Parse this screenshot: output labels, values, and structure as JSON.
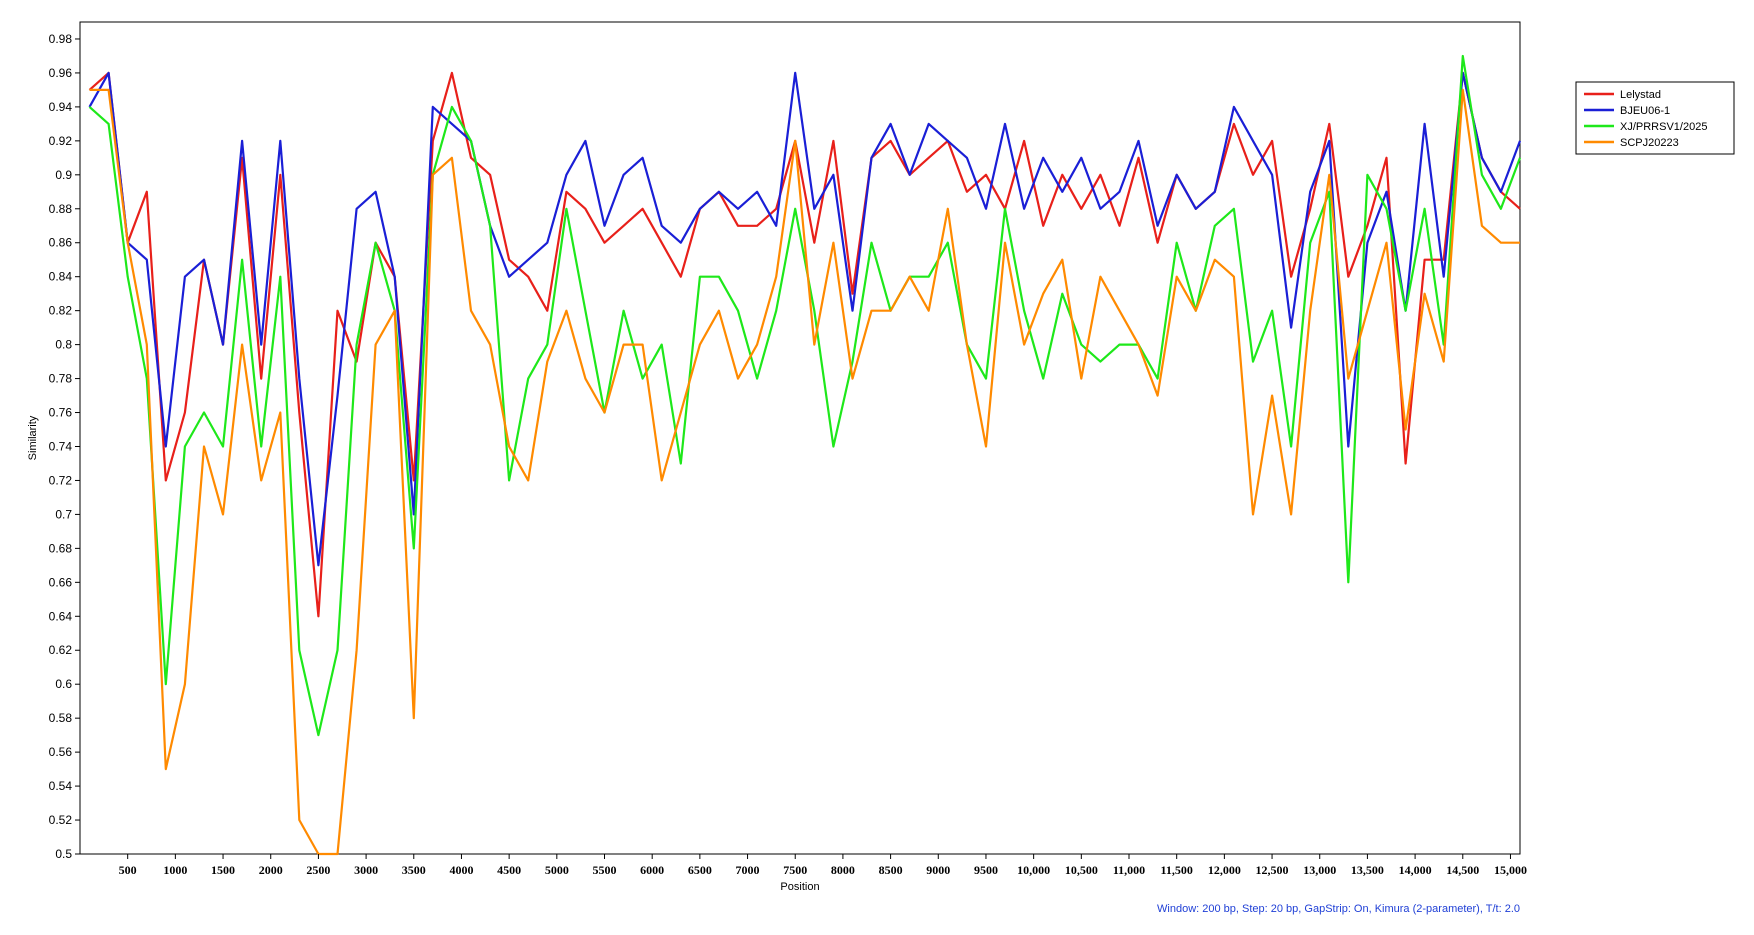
{
  "chart_data": {
    "type": "line",
    "xlabel": "Position",
    "ylabel": "Similarity",
    "xlim": [
      0,
      15100
    ],
    "ylim": [
      0.5,
      0.99
    ],
    "x_ticks": [
      500,
      1000,
      1500,
      2000,
      2500,
      3000,
      3500,
      4000,
      4500,
      5000,
      5500,
      6000,
      6500,
      7000,
      7500,
      8000,
      8500,
      9000,
      9500,
      10000,
      10500,
      11000,
      11500,
      12000,
      12500,
      13000,
      13500,
      14000,
      14500,
      15000
    ],
    "x_tick_labels": [
      "500",
      "1000",
      "1500",
      "2000",
      "2500",
      "3000",
      "3500",
      "4000",
      "4500",
      "5000",
      "5500",
      "6000",
      "6500",
      "7000",
      "7500",
      "8000",
      "8500",
      "9000",
      "9500",
      "10,000",
      "10,500",
      "11,000",
      "11,500",
      "12,000",
      "12,500",
      "13,000",
      "13,500",
      "14,000",
      "14,500",
      "15,000"
    ],
    "y_ticks": [
      0.5,
      0.52,
      0.54,
      0.56,
      0.58,
      0.6,
      0.62,
      0.64,
      0.66,
      0.68,
      0.7,
      0.72,
      0.74,
      0.76,
      0.78,
      0.8,
      0.82,
      0.84,
      0.86,
      0.88,
      0.9,
      0.92,
      0.94,
      0.96,
      0.98
    ],
    "y_tick_labels": [
      "0.5",
      "0.52",
      "0.54",
      "0.56",
      "0.58",
      "0.6",
      "0.62",
      "0.64",
      "0.66",
      "0.68",
      "0.7",
      "0.72",
      "0.74",
      "0.76",
      "0.78",
      "0.8",
      "0.82",
      "0.84",
      "0.86",
      "0.88",
      "0.9",
      "0.92",
      "0.94",
      "0.96",
      "0.98"
    ],
    "grid": false,
    "legend_position": "top-right-outside",
    "x": [
      100,
      300,
      500,
      700,
      900,
      1100,
      1300,
      1500,
      1700,
      1900,
      2100,
      2300,
      2500,
      2700,
      2900,
      3100,
      3300,
      3500,
      3700,
      3900,
      4100,
      4300,
      4500,
      4700,
      4900,
      5100,
      5300,
      5500,
      5700,
      5900,
      6100,
      6300,
      6500,
      6700,
      6900,
      7100,
      7300,
      7500,
      7700,
      7900,
      8100,
      8300,
      8500,
      8700,
      8900,
      9100,
      9300,
      9500,
      9700,
      9900,
      10100,
      10300,
      10500,
      10700,
      10900,
      11100,
      11300,
      11500,
      11700,
      11900,
      12100,
      12300,
      12500,
      12700,
      12900,
      13100,
      13300,
      13500,
      13700,
      13900,
      14100,
      14300,
      14500,
      14700,
      14900,
      15100
    ],
    "series": [
      {
        "name": "Lelystad",
        "color": "#e8201a",
        "values": [
          0.95,
          0.96,
          0.86,
          0.89,
          0.72,
          0.76,
          0.85,
          0.8,
          0.91,
          0.78,
          0.9,
          0.76,
          0.64,
          0.82,
          0.79,
          0.86,
          0.84,
          0.72,
          0.92,
          0.96,
          0.91,
          0.9,
          0.85,
          0.84,
          0.82,
          0.89,
          0.88,
          0.86,
          0.87,
          0.88,
          0.86,
          0.84,
          0.88,
          0.89,
          0.87,
          0.87,
          0.88,
          0.92,
          0.86,
          0.92,
          0.83,
          0.91,
          0.92,
          0.9,
          0.91,
          0.92,
          0.89,
          0.9,
          0.88,
          0.92,
          0.87,
          0.9,
          0.88,
          0.9,
          0.87,
          0.91,
          0.86,
          0.9,
          0.88,
          0.89,
          0.93,
          0.9,
          0.92,
          0.84,
          0.88,
          0.93,
          0.84,
          0.87,
          0.91,
          0.73,
          0.85,
          0.85,
          0.96,
          0.91,
          0.89,
          0.88
        ]
      },
      {
        "name": "BJEU06-1",
        "color": "#1a1fd6",
        "values": [
          0.94,
          0.96,
          0.86,
          0.85,
          0.74,
          0.84,
          0.85,
          0.8,
          0.92,
          0.8,
          0.92,
          0.78,
          0.67,
          0.77,
          0.88,
          0.89,
          0.84,
          0.7,
          0.94,
          0.93,
          0.92,
          0.87,
          0.84,
          0.85,
          0.86,
          0.9,
          0.92,
          0.87,
          0.9,
          0.91,
          0.87,
          0.86,
          0.88,
          0.89,
          0.88,
          0.89,
          0.87,
          0.96,
          0.88,
          0.9,
          0.82,
          0.91,
          0.93,
          0.9,
          0.93,
          0.92,
          0.91,
          0.88,
          0.93,
          0.88,
          0.91,
          0.89,
          0.91,
          0.88,
          0.89,
          0.92,
          0.87,
          0.9,
          0.88,
          0.89,
          0.94,
          0.92,
          0.9,
          0.81,
          0.89,
          0.92,
          0.74,
          0.86,
          0.89,
          0.82,
          0.93,
          0.84,
          0.96,
          0.91,
          0.89,
          0.92
        ]
      },
      {
        "name": "XJ/PRRSV1/2025",
        "color": "#1ee81a",
        "values": [
          0.94,
          0.93,
          0.84,
          0.78,
          0.6,
          0.74,
          0.76,
          0.74,
          0.85,
          0.74,
          0.84,
          0.62,
          0.57,
          0.62,
          0.8,
          0.86,
          0.82,
          0.68,
          0.9,
          0.94,
          0.92,
          0.87,
          0.72,
          0.78,
          0.8,
          0.88,
          0.82,
          0.76,
          0.82,
          0.78,
          0.8,
          0.73,
          0.84,
          0.84,
          0.82,
          0.78,
          0.82,
          0.88,
          0.82,
          0.74,
          0.79,
          0.86,
          0.82,
          0.84,
          0.84,
          0.86,
          0.8,
          0.78,
          0.88,
          0.82,
          0.78,
          0.83,
          0.8,
          0.79,
          0.8,
          0.8,
          0.78,
          0.86,
          0.82,
          0.87,
          0.88,
          0.79,
          0.82,
          0.74,
          0.86,
          0.89,
          0.66,
          0.9,
          0.88,
          0.82,
          0.88,
          0.8,
          0.97,
          0.9,
          0.88,
          0.91
        ]
      },
      {
        "name": "SCPJ20223",
        "color": "#ff8a00",
        "values": [
          0.95,
          0.95,
          0.86,
          0.8,
          0.55,
          0.6,
          0.74,
          0.7,
          0.8,
          0.72,
          0.76,
          0.52,
          0.5,
          0.5,
          0.62,
          0.8,
          0.82,
          0.58,
          0.9,
          0.91,
          0.82,
          0.8,
          0.74,
          0.72,
          0.79,
          0.82,
          0.78,
          0.76,
          0.8,
          0.8,
          0.72,
          0.76,
          0.8,
          0.82,
          0.78,
          0.8,
          0.84,
          0.92,
          0.8,
          0.86,
          0.78,
          0.82,
          0.82,
          0.84,
          0.82,
          0.88,
          0.8,
          0.74,
          0.86,
          0.8,
          0.83,
          0.85,
          0.78,
          0.84,
          0.82,
          0.8,
          0.77,
          0.84,
          0.82,
          0.85,
          0.84,
          0.7,
          0.77,
          0.7,
          0.82,
          0.9,
          0.78,
          0.82,
          0.86,
          0.75,
          0.83,
          0.79,
          0.95,
          0.87,
          0.86,
          0.86
        ]
      }
    ],
    "annotations": [
      "Window: 200 bp, Step: 20 bp, GapStrip: On, Kimura (2-parameter), T/t: 2.0"
    ]
  }
}
